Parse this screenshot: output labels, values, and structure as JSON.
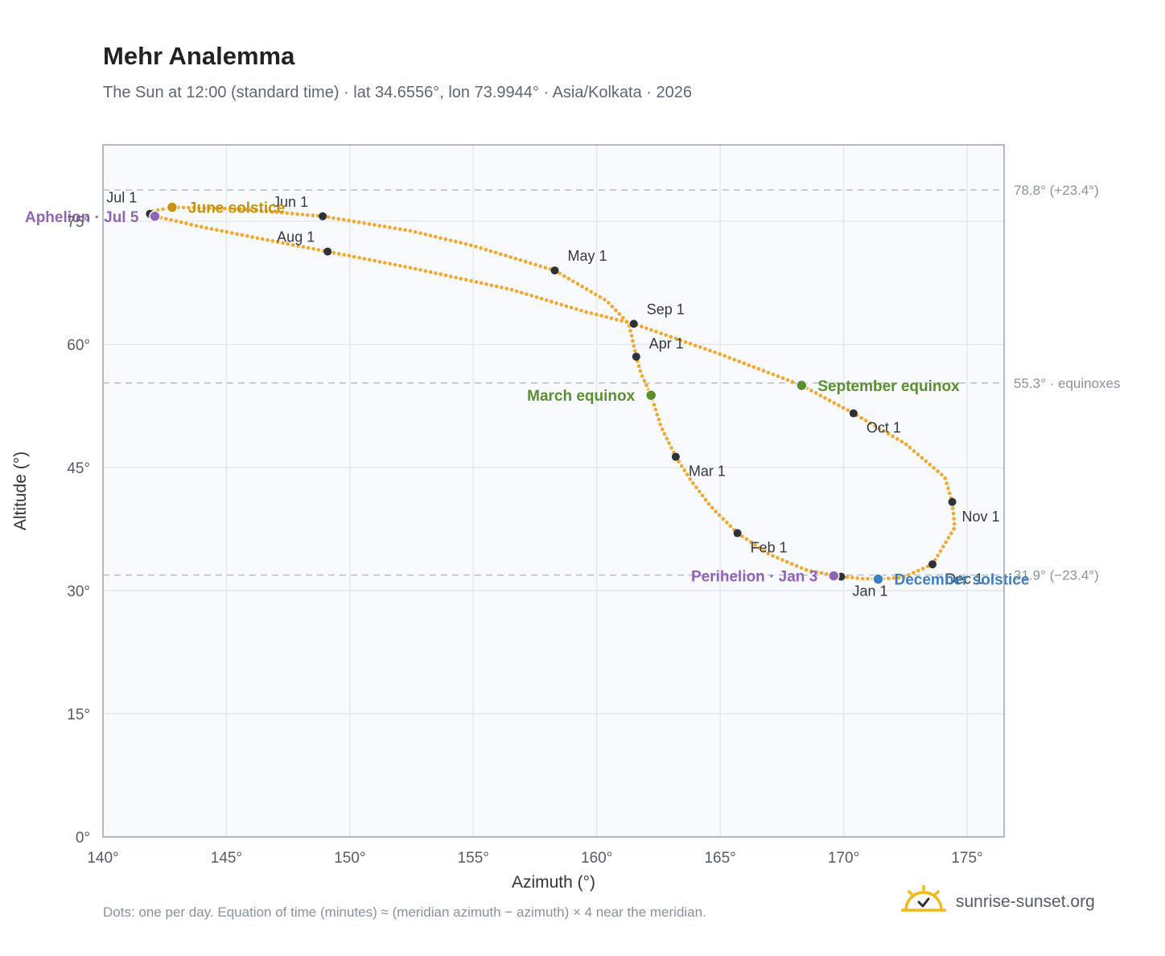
{
  "header": {
    "title": "Mehr Analemma",
    "subtitle": "The Sun at 12:00 (standard time) · lat 34.6556°, lon 73.9944° · Asia/Kolkata · 2026"
  },
  "footer": {
    "note": "Dots: one per day. Equation of time (minutes) ≈ (meridian azimuth − azimuth) × 4 near the meridian.",
    "brand": "sunrise-sunset.org",
    "brand_icon": "sun-logo-icon"
  },
  "colors": {
    "curve": "#f2a82c",
    "month_dot": "#2d3138",
    "solstice_june": "#c9920e",
    "equinox": "#5a8f2e",
    "december_solstice": "#3d7fc1",
    "apsis": "#9165b6",
    "plot_bg": "#f8fafd",
    "grid": "#e3e8ef",
    "axis": "#9aa3b0",
    "ref_line": "#b8bfc9"
  },
  "chart_data": {
    "type": "scatter",
    "title": "Mehr Analemma",
    "xlabel": "Azimuth (°)",
    "ylabel": "Altitude (°)",
    "xlim": [
      140,
      176.5
    ],
    "ylim": [
      0,
      84.3
    ],
    "xticks": [
      140,
      145,
      150,
      155,
      160,
      165,
      170,
      175
    ],
    "xtick_labels": [
      "140°",
      "145°",
      "150°",
      "155°",
      "160°",
      "165°",
      "170°",
      "175°"
    ],
    "yticks": [
      0,
      15,
      30,
      45,
      60,
      75
    ],
    "ytick_labels": [
      "0°",
      "15°",
      "30°",
      "45°",
      "60°",
      "75°"
    ],
    "grid": true,
    "reference_lines": [
      {
        "y": 78.8,
        "label": "78.8° (+23.4°)"
      },
      {
        "y": 55.3,
        "label": "55.3° · equinoxes"
      },
      {
        "y": 31.9,
        "label": "31.9° (−23.4°)"
      }
    ],
    "month_markers": [
      {
        "label": "Jan 1",
        "az": 169.9,
        "alt": 31.7
      },
      {
        "label": "Feb 1",
        "az": 165.7,
        "alt": 37.0
      },
      {
        "label": "Mar 1",
        "az": 163.2,
        "alt": 46.3
      },
      {
        "label": "Apr 1",
        "az": 161.6,
        "alt": 58.5
      },
      {
        "label": "May 1",
        "az": 158.3,
        "alt": 69.0
      },
      {
        "label": "Jun 1",
        "az": 148.9,
        "alt": 75.6
      },
      {
        "label": "Jul 1",
        "az": 141.9,
        "alt": 75.9
      },
      {
        "label": "Aug 1",
        "az": 149.1,
        "alt": 71.3
      },
      {
        "label": "Sep 1",
        "az": 161.5,
        "alt": 62.5
      },
      {
        "label": "Oct 1",
        "az": 170.4,
        "alt": 51.6
      },
      {
        "label": "Nov 1",
        "az": 174.4,
        "alt": 40.8
      },
      {
        "label": "Dec 1",
        "az": 173.6,
        "alt": 33.2
      }
    ],
    "events": [
      {
        "label": "June solstice",
        "az": 142.8,
        "alt": 76.7
      },
      {
        "label": "Aphelion · Jul 5",
        "az": 142.1,
        "alt": 75.6
      },
      {
        "label": "March equinox",
        "az": 162.2,
        "alt": 53.8
      },
      {
        "label": "September equinox",
        "az": 168.3,
        "alt": 55.0
      },
      {
        "label": "Perihelion · Jan 3",
        "az": 169.6,
        "alt": 31.8
      },
      {
        "label": "December solstice",
        "az": 171.4,
        "alt": 31.4
      }
    ],
    "analemma_path": [
      [
        171.4,
        31.4
      ],
      [
        170.8,
        31.45
      ],
      [
        169.9,
        31.7
      ],
      [
        168.5,
        32.5
      ],
      [
        167.0,
        34.4
      ],
      [
        165.7,
        37.0
      ],
      [
        164.6,
        40.3
      ],
      [
        163.8,
        43.5
      ],
      [
        163.2,
        46.3
      ],
      [
        162.6,
        50.0
      ],
      [
        162.2,
        53.8
      ],
      [
        161.8,
        56.4
      ],
      [
        161.6,
        58.5
      ],
      [
        161.3,
        62.5
      ],
      [
        160.4,
        65.3
      ],
      [
        158.3,
        69.0
      ],
      [
        155.0,
        72.0
      ],
      [
        152.5,
        73.8
      ],
      [
        148.9,
        75.6
      ],
      [
        145.5,
        76.5
      ],
      [
        142.8,
        76.7
      ],
      [
        142.0,
        76.2
      ],
      [
        141.9,
        75.9
      ],
      [
        142.1,
        75.6
      ],
      [
        144.0,
        74.3
      ],
      [
        146.5,
        72.8
      ],
      [
        149.1,
        71.3
      ],
      [
        152.5,
        69.3
      ],
      [
        156.5,
        66.7
      ],
      [
        159.5,
        64.0
      ],
      [
        161.5,
        62.5
      ],
      [
        165.0,
        58.8
      ],
      [
        168.3,
        55.0
      ],
      [
        170.4,
        51.6
      ],
      [
        172.5,
        47.9
      ],
      [
        174.1,
        43.8
      ],
      [
        174.4,
        40.8
      ],
      [
        174.5,
        37.7
      ],
      [
        173.6,
        33.2
      ],
      [
        172.4,
        31.6
      ],
      [
        171.4,
        31.4
      ]
    ]
  }
}
